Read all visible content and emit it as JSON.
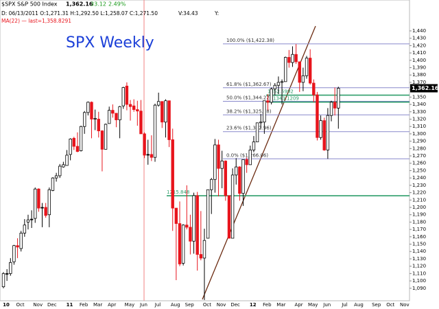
{
  "chart_data": {
    "type": "candlestick",
    "header": {
      "symbol": "$SPX S&P 500 Index",
      "price": "1,362.16",
      "change": "33.12",
      "change_pct": "2.49%",
      "ohlc_line": "D: 06/13/2011 O:1,271.31 H:1,292.50 L:1,258.07 C:1,271.50",
      "volume": "V:34.43",
      "y_label": "Y:",
      "ma_label": "MA(22) — last=1,358.8291"
    },
    "title": "SPX Weekly",
    "categories": [
      "10",
      null,
      null,
      null,
      "Oct",
      null,
      null,
      null,
      null,
      "Nov",
      null,
      null,
      null,
      "Dec",
      null,
      null,
      null,
      null,
      "11",
      null,
      null,
      null,
      "Feb",
      null,
      null,
      null,
      "Mar",
      null,
      null,
      null,
      "Apr",
      null,
      null,
      null,
      null,
      "May",
      null,
      null,
      null,
      "Jun",
      null,
      null,
      null,
      "Jul",
      null,
      null,
      null,
      null,
      "Aug",
      null,
      null,
      null,
      "Sep",
      null,
      null,
      null,
      null,
      "Oct",
      null,
      null,
      null,
      "Nov",
      null,
      null,
      null,
      "Dec",
      null,
      null,
      null,
      null,
      "12",
      null,
      null,
      null,
      "Feb",
      null,
      null,
      null,
      "Mar",
      null,
      null,
      null,
      null,
      "Apr",
      null,
      null,
      null,
      "May",
      null,
      null,
      null,
      "Jun",
      null,
      null,
      null,
      null,
      "Jul",
      null,
      null,
      null,
      "Aug",
      null,
      null,
      null,
      null,
      "Sep",
      null,
      null,
      null,
      "Oct",
      null,
      null,
      null,
      "Nov"
    ],
    "open": [
      1092,
      1110,
      1110,
      1126,
      1148,
      1144,
      1165,
      1180,
      1184,
      1185,
      1225,
      1200,
      1200,
      1190,
      1223,
      1240,
      1243,
      1255,
      1257,
      1272,
      1294,
      1283,
      1277,
      1310,
      1329,
      1343,
      1320,
      1320,
      1304,
      1279,
      1314,
      1332,
      1328,
      1319,
      1338,
      1365,
      1340,
      1338,
      1333,
      1331,
      1300,
      1272,
      1272,
      1268,
      1339,
      1344,
      1316,
      1345,
      1292,
      1199,
      1178,
      1124,
      1176,
      1173,
      1154,
      1216,
      1136,
      1131,
      1158,
      1224,
      1238,
      1285,
      1253,
      1263,
      1216,
      1158,
      1244,
      1255,
      1219,
      1265,
      1258,
      1278,
      1289,
      1315,
      1316,
      1345,
      1343,
      1361,
      1366,
      1370,
      1371,
      1404,
      1397,
      1408,
      1398,
      1370,
      1379,
      1403,
      1369,
      1353,
      1295,
      1318,
      1278,
      1325,
      1343,
      1335,
      null,
      null,
      null,
      null,
      null,
      null,
      null,
      null,
      null,
      null,
      null,
      null,
      null,
      null,
      null,
      null,
      null,
      null
    ],
    "high": [
      1112,
      1116,
      1131,
      1149,
      1158,
      1168,
      1184,
      1190,
      1196,
      1227,
      1226,
      1206,
      1206,
      1227,
      1241,
      1247,
      1259,
      1262,
      1278,
      1294,
      1296,
      1302,
      1311,
      1331,
      1344,
      1344,
      1333,
      1330,
      1305,
      1314,
      1337,
      1340,
      1328,
      1338,
      1364,
      1370,
      1346,
      1347,
      1345,
      1346,
      1302,
      1292,
      1298,
      1341,
      1356,
      1344,
      1347,
      1345,
      1307,
      1199,
      1208,
      1177,
      1230,
      1190,
      1220,
      1221,
      1195,
      1171,
      1224,
      1240,
      1293,
      1292,
      1277,
      1264,
      1216,
      1253,
      1267,
      1256,
      1265,
      1268,
      1284,
      1297,
      1315,
      1327,
      1345,
      1354,
      1363,
      1369,
      1378,
      1374,
      1405,
      1414,
      1419,
      1422,
      1398,
      1390,
      1406,
      1415,
      1374,
      1357,
      1325,
      1322,
      1335,
      1345,
      1363,
      1364,
      null,
      null,
      null,
      null,
      null,
      null,
      null,
      null,
      null,
      null,
      null,
      null,
      null,
      null,
      null,
      null,
      null,
      null
    ],
    "low": [
      1090,
      1100,
      1107,
      1122,
      1131,
      1140,
      1160,
      1170,
      1172,
      1179,
      1194,
      1173,
      1186,
      1173,
      1222,
      1235,
      1240,
      1254,
      1257,
      1264,
      1278,
      1275,
      1276,
      1300,
      1325,
      1294,
      1305,
      1295,
      1249,
      1279,
      1314,
      1322,
      1309,
      1294,
      1334,
      1332,
      1318,
      1330,
      1311,
      1300,
      1267,
      1258,
      1263,
      1262,
      1337,
      1308,
      1295,
      1282,
      1168,
      1101,
      1120,
      1121,
      1170,
      1136,
      1137,
      1114,
      1128,
      1074,
      1158,
      1191,
      1220,
      1215,
      1226,
      1209,
      1158,
      1158,
      1231,
      1209,
      1202,
      1247,
      1258,
      1275,
      1290,
      1307,
      1300,
      1332,
      1340,
      1352,
      1354,
      1340,
      1372,
      1390,
      1391,
      1395,
      1357,
      1358,
      1375,
      1367,
      1343,
      1291,
      1292,
      1277,
      1266,
      1317,
      1325,
      1307,
      null,
      null,
      null,
      null,
      null,
      null,
      null,
      null,
      null,
      null,
      null,
      null,
      null,
      null,
      null,
      null,
      null,
      null
    ],
    "close": [
      1110,
      1110,
      1125,
      1148,
      1146,
      1165,
      1176,
      1183,
      1183,
      1225,
      1199,
      1199,
      1189,
      1224,
      1240,
      1243,
      1256,
      1258,
      1271,
      1293,
      1283,
      1276,
      1310,
      1329,
      1343,
      1320,
      1321,
      1304,
      1279,
      1313,
      1332,
      1328,
      1319,
      1337,
      1363,
      1340,
      1337,
      1333,
      1331,
      1300,
      1271,
      1271,
      1268,
      1339,
      1344,
      1316,
      1345,
      1292,
      1199,
      1178,
      1123,
      1176,
      1173,
      1154,
      1216,
      1136,
      1131,
      1155,
      1224,
      1238,
      1285,
      1253,
      1263,
      1216,
      1158,
      1244,
      1255,
      1219,
      1265,
      1258,
      1278,
      1289,
      1315,
      1316,
      1345,
      1343,
      1361,
      1366,
      1370,
      1371,
      1404,
      1397,
      1408,
      1398,
      1370,
      1379,
      1403,
      1369,
      1353,
      1295,
      1318,
      1278,
      1325,
      1343,
      1335,
      1362,
      null,
      null,
      null,
      null,
      null,
      null,
      null,
      null,
      null,
      null,
      null,
      null,
      null,
      null,
      null,
      null,
      null,
      null
    ],
    "up_color": "#000000",
    "down_color": "#e8141c",
    "fib_color": "#8888cc",
    "fib_levels": [
      {
        "value": 1422.38,
        "label": "100.0% ($1,422.38)"
      },
      {
        "value": 1362.67,
        "label": "61.8% ($1,362.67)"
      },
      {
        "value": 1344.22,
        "label": "50.0% ($1,344.22)"
      },
      {
        "value": 1325.78,
        "label": "38.2% ($1,325.78)"
      },
      {
        "value": 1302.96,
        "label": "23.6% ($1,302.96)"
      },
      {
        "value": 1266.06,
        "label": "0.0% ($1,266.06)"
      }
    ],
    "support_color": "#2e9e6a",
    "support_levels": [
      {
        "value": 1352.5992,
        "label": "1352.5992"
      },
      {
        "value": 1343.1209,
        "label": "1343.1209"
      },
      {
        "value": 1215.848,
        "label": "1215.848"
      }
    ],
    "ylim": [
      1073,
      1482
    ],
    "yticks": [
      {
        "value": 1090,
        "label": "1,090"
      },
      {
        "value": 1100,
        "label": "1,100"
      },
      {
        "value": 1110,
        "label": "1,110"
      },
      {
        "value": 1120,
        "label": "1,120"
      },
      {
        "value": 1130,
        "label": "1,130"
      },
      {
        "value": 1140,
        "label": "1,140"
      },
      {
        "value": 1150,
        "label": "1,150"
      },
      {
        "value": 1160,
        "label": "1,160"
      },
      {
        "value": 1170,
        "label": "1,170"
      },
      {
        "value": 1180,
        "label": "1,180"
      },
      {
        "value": 1190,
        "label": "1,190"
      },
      {
        "value": 1200,
        "label": "1,200"
      },
      {
        "value": 1210,
        "label": "1,210"
      },
      {
        "value": 1220,
        "label": "1,220"
      },
      {
        "value": 1230,
        "label": "1,230"
      },
      {
        "value": 1240,
        "label": "1,240"
      },
      {
        "value": 1250,
        "label": "1,250"
      },
      {
        "value": 1260,
        "label": "1,260"
      },
      {
        "value": 1270,
        "label": "1,270"
      },
      {
        "value": 1280,
        "label": "1,280"
      },
      {
        "value": 1290,
        "label": "1,290"
      },
      {
        "value": 1300,
        "label": "1,300"
      },
      {
        "value": 1310,
        "label": "1,310"
      },
      {
        "value": 1320,
        "label": "1,320"
      },
      {
        "value": 1330,
        "label": "1,330"
      },
      {
        "value": 1340,
        "label": "1,340"
      },
      {
        "value": 1350,
        "label": "1,350"
      },
      {
        "value": 1360,
        "label": "1,360"
      },
      {
        "value": 1370,
        "label": "1,370"
      },
      {
        "value": 1380,
        "label": "1,380"
      },
      {
        "value": 1390,
        "label": "1,390"
      },
      {
        "value": 1400,
        "label": "1,400"
      },
      {
        "value": 1410,
        "label": "1,410"
      },
      {
        "value": 1420,
        "label": "1,420"
      },
      {
        "value": 1430,
        "label": "1,430"
      },
      {
        "value": 1440,
        "label": "1,440"
      }
    ]
  }
}
